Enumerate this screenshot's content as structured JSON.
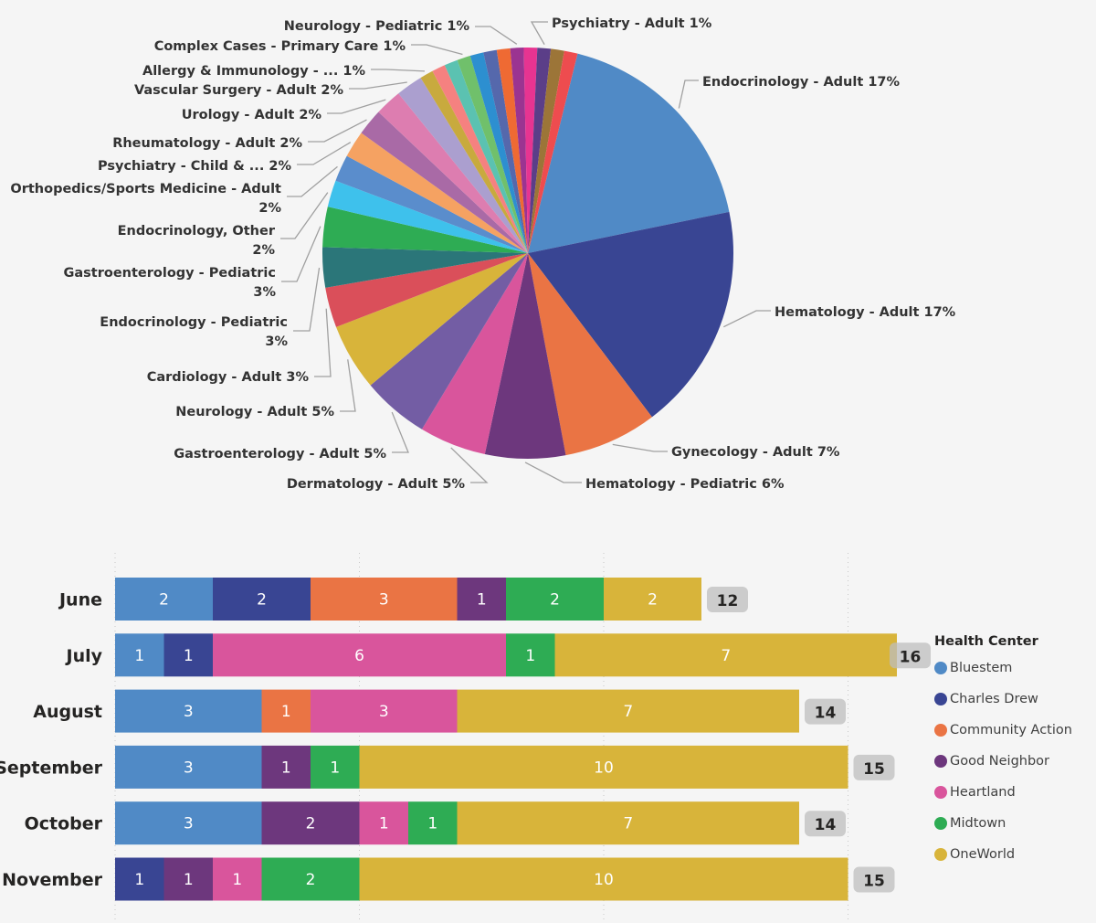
{
  "chart_data": [
    {
      "type": "pie",
      "title": "",
      "start_angle_deg": 14,
      "slices": [
        {
          "label": "Endocrinology - Adult",
          "value": 17,
          "display": "Endocrinology - Adult 17%",
          "color": "#508ac6"
        },
        {
          "label": "Hematology - Adult",
          "value": 17,
          "display": "Hematology - Adult 17%",
          "color": "#394593"
        },
        {
          "label": "Gynecology - Adult",
          "value": 7,
          "display": "Gynecology - Adult 7%",
          "color": "#ea7444"
        },
        {
          "label": "Hematology - Pediatric",
          "value": 6,
          "display": "Hematology - Pediatric 6%",
          "color": "#6d377d"
        },
        {
          "label": "Dermatology - Adult",
          "value": 5,
          "display": "Dermatology - Adult 5%",
          "color": "#d9559c"
        },
        {
          "label": "Gastroenterology - Adult",
          "value": 5,
          "display": "Gastroenterology - Adult 5%",
          "color": "#735da4"
        },
        {
          "label": "Neurology - Adult",
          "value": 5,
          "display": "Neurology - Adult 5%",
          "color": "#d8b43a"
        },
        {
          "label": "Cardiology - Adult",
          "value": 3,
          "display": "Cardiology - Adult 3%",
          "color": "#da4f5a"
        },
        {
          "label": "Endocrinology - Pediatric",
          "value": 3,
          "display": [
            "Endocrinology - Pediatric",
            "3%"
          ],
          "color": "#2b7679"
        },
        {
          "label": "Gastroenterology - Pediatric",
          "value": 3,
          "display": [
            "Gastroenterology - Pediatric",
            "3%"
          ],
          "color": "#2eac54"
        },
        {
          "label": "Endocrinology, Other",
          "value": 2,
          "display": [
            "Endocrinology, Other",
            "2%"
          ],
          "color": "#3ec1ec"
        },
        {
          "label": "Orthopedics/Sports Medicine - Adult",
          "value": 2,
          "display": [
            "Orthopedics/Sports Medicine - Adult",
            "2%"
          ],
          "color": "#5a8dcc"
        },
        {
          "label": "Psychiatry - Child & ...",
          "value": 2,
          "display": "Psychiatry - Child & ... 2%",
          "color": "#f5a262"
        },
        {
          "label": "Rheumatology - Adult",
          "value": 2,
          "display": "Rheumatology - Adult 2%",
          "color": "#a96aa6"
        },
        {
          "label": "Urology - Adult",
          "value": 2,
          "display": "Urology - Adult 2%",
          "color": "#dd7db0"
        },
        {
          "label": "Vascular Surgery - Adult",
          "value": 2,
          "display": "Vascular Surgery - Adult 2%",
          "color": "#ab9fcf"
        },
        {
          "label": "Allergy & Immunology - ...",
          "value": 1,
          "display": "Allergy & Immunology - ... 1%",
          "color": "#c8aa3e"
        },
        {
          "label": "",
          "value": 1,
          "display": "",
          "color": "#f58180"
        },
        {
          "label": "",
          "value": 1,
          "display": "",
          "color": "#5bc2b1"
        },
        {
          "label": "Complex Cases - Primary Care",
          "value": 1,
          "display": "Complex Cases - Primary Care 1%",
          "color": "#70c06b"
        },
        {
          "label": "",
          "value": 1,
          "display": "",
          "color": "#2d8fd0"
        },
        {
          "label": "",
          "value": 1,
          "display": "",
          "color": "#5568ac"
        },
        {
          "label": "",
          "value": 1,
          "display": "",
          "color": "#ef6a33"
        },
        {
          "label": "Neurology - Pediatric",
          "value": 1,
          "display": "Neurology - Pediatric 1%",
          "color": "#9b3491"
        },
        {
          "label": "",
          "value": 1,
          "display": "",
          "color": "#e73491"
        },
        {
          "label": "Psychiatry - Adult",
          "value": 1,
          "display": "Psychiatry - Adult 1%",
          "color": "#5b3e88"
        },
        {
          "label": "",
          "value": 1,
          "display": "",
          "color": "#9c7538"
        },
        {
          "label": "",
          "value": 1,
          "display": "",
          "color": "#ee4c4f"
        }
      ]
    },
    {
      "type": "bar",
      "orientation": "horizontal",
      "stacked": true,
      "categories": [
        "June",
        "July",
        "August",
        "September",
        "October",
        "November"
      ],
      "series": [
        {
          "name": "Bluestem",
          "color": "#508ac6",
          "values": [
            2,
            1,
            3,
            3,
            3,
            0
          ]
        },
        {
          "name": "Charles Drew",
          "color": "#394593",
          "values": [
            2,
            1,
            0,
            0,
            0,
            1
          ]
        },
        {
          "name": "Community Action",
          "color": "#ea7444",
          "values": [
            3,
            0,
            1,
            0,
            0,
            0
          ]
        },
        {
          "name": "Good Neighbor",
          "color": "#6d377d",
          "values": [
            1,
            0,
            0,
            1,
            2,
            1
          ]
        },
        {
          "name": "Heartland",
          "color": "#d9559c",
          "values": [
            0,
            6,
            3,
            0,
            1,
            1
          ]
        },
        {
          "name": "Midtown",
          "color": "#2eac54",
          "values": [
            2,
            1,
            0,
            1,
            1,
            2
          ]
        },
        {
          "name": "OneWorld",
          "color": "#d8b43a",
          "values": [
            2,
            7,
            7,
            10,
            7,
            10
          ]
        }
      ],
      "totals": [
        12,
        16,
        14,
        15,
        14,
        15
      ],
      "xlim": [
        0,
        16
      ],
      "grid": true,
      "grid_step": 5,
      "legend": {
        "title": "Health Center",
        "position": "right"
      }
    }
  ]
}
